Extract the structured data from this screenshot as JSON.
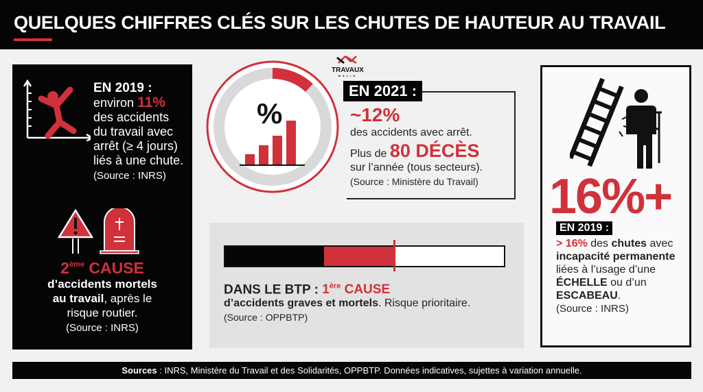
{
  "header": {
    "title": "QUELQUES CHIFFRES CLÉS SUR LES CHUTES DE HAUTEUR AU TRAVAIL"
  },
  "colors": {
    "accent": "#d0313a",
    "dark": "#050505",
    "background": "#f1f1f1"
  },
  "logo": {
    "name": "TRAVAUX",
    "sub": "MALIN"
  },
  "left_panel": {
    "stat1": {
      "label": "EN 2019 :",
      "pre": "environ ",
      "value": "11%",
      "text": "des accidents du travail avec arrêt (≥ 4 jours) liés à une chute.",
      "source": "(Source : INRS)",
      "icon": "falling-person-chart-icon"
    },
    "stat2": {
      "rank": "2",
      "rank_sup": "ème",
      "cause": " CAUSE",
      "bold": "d’accidents mortels au travail",
      "rest": ", après le risque routier.",
      "source": "(Source : INRS)",
      "icons": [
        "warning-sign-icon",
        "tombstone-icon"
      ]
    }
  },
  "middle_top": {
    "label": "EN 2021 :",
    "value": "~12%",
    "value_fraction": 0.12,
    "text1": "des accidents avec arrêt.",
    "pre2": "Plus de ",
    "deaths": "80 DÉCÈS",
    "text2": "sur l’année (tous secteurs).",
    "source": "(Source : Ministère du Travail)",
    "icon": "percent-bar-chart-icon"
  },
  "middle_bottom": {
    "label": "DANS LE BTP : ",
    "rank": "1",
    "rank_sup": "ère",
    "cause": " CAUSE",
    "bold": "d’accidents graves et mortels",
    "rest": ". Risque prioritaire.",
    "source": "(Source : OPPBTP)"
  },
  "right_panel": {
    "big": "16%+",
    "label": "EN 2019 :",
    "v": "> 16%",
    "t1": " des ",
    "b1": "chutes",
    "t2": " avec ",
    "b2": "incapacité permanente",
    "t3": " liées à l’usage d’une ",
    "b3": "ÉCHELLE",
    "t4": " ou d’un ",
    "b4": "ESCABEAU",
    "t5": ".",
    "source": "(Source : INRS)",
    "icons": [
      "broken-ladder-icon",
      "injured-person-crutch-icon"
    ]
  },
  "footer": {
    "bold": "Sources",
    "text": " : INRS, Ministère du Travail et des Solidarités, OPPBTP. Données indicatives, sujettes à variation annuelle."
  }
}
